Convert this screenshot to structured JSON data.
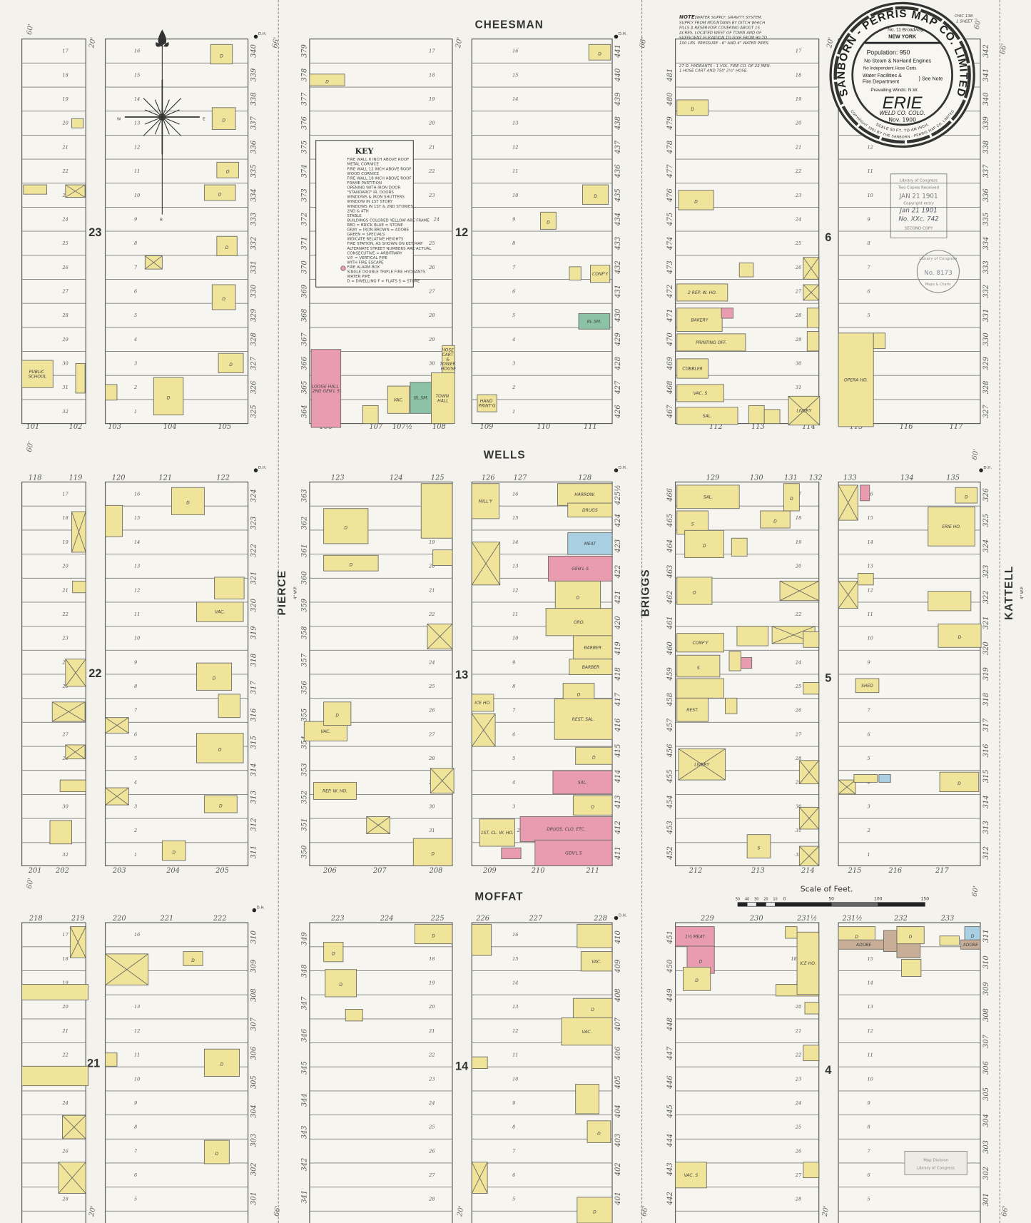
{
  "colors": {
    "paper": "#f3f2ec",
    "frame": "#f0e39a",
    "brick": "#e99bb0",
    "stone": "#a8cfe2",
    "adobe": "#c8ae96",
    "specials": "#8cc3a6",
    "line": "#5c5c5a"
  },
  "streets": {
    "cheesman": "CHEESMAN",
    "wells": "WELLS",
    "moffat": "MOFFAT",
    "pierce": "PIERCE",
    "briggs": "BRIGGS",
    "kattell": "KATTELL"
  },
  "street_notes": {
    "pierce": "4\" W.P.",
    "kattell": "4\" W.P.",
    "dh": "D.H."
  },
  "widths": {
    "sixty": "60'",
    "twenty": "20'",
    "sixtysix": "66'"
  },
  "blocks": [
    "23",
    "12",
    "6",
    "22",
    "13",
    "5",
    "21",
    "14",
    "4"
  ],
  "house_numbers": {
    "top_row_bottom": [
      "101",
      "102",
      "103",
      "104",
      "105",
      "106",
      "107",
      "107½",
      "108",
      "109",
      "110",
      "111",
      "112",
      "113",
      "114",
      "115",
      "116",
      "117"
    ],
    "mid_row_top": [
      "118",
      "119",
      "120",
      "121",
      "122",
      "123",
      "124",
      "125",
      "126",
      "127",
      "128",
      "129",
      "130",
      "131",
      "132",
      "133",
      "134",
      "135"
    ],
    "mid_row_bottom": [
      "201",
      "202",
      "203",
      "204",
      "205",
      "206",
      "207",
      "208",
      "209",
      "210",
      "211",
      "212",
      "213",
      "214",
      "215",
      "216",
      "217"
    ],
    "bottom_row_top": [
      "218",
      "219",
      "220",
      "221",
      "222",
      "223",
      "224",
      "225",
      "226",
      "227",
      "228",
      "229",
      "230",
      "231½",
      "231½",
      "232",
      "233"
    ]
  },
  "side_numbers": {
    "top_b": [
      "340",
      "339",
      "338",
      "337",
      "336",
      "335",
      "334",
      "333",
      "332",
      "331",
      "330",
      "329",
      "328",
      "327",
      "326",
      "325"
    ],
    "top_c": [
      "379",
      "378",
      "377",
      "376",
      "375",
      "374",
      "373",
      "372",
      "371",
      "370",
      "369",
      "368",
      "367",
      "366",
      "365",
      "364"
    ],
    "top_d": [
      "441",
      "440",
      "439",
      "438",
      "437",
      "436",
      "435",
      "434",
      "433",
      "432",
      "431",
      "430",
      "429",
      "428",
      "427",
      "426"
    ],
    "top_e": [
      "481",
      "480",
      "479",
      "478",
      "477",
      "476",
      "475",
      "474",
      "473",
      "472",
      "471",
      "470",
      "469",
      "468",
      "467"
    ],
    "top_f": [
      "342",
      "341",
      "340",
      "339",
      "338",
      "337",
      "336",
      "335",
      "334",
      "333",
      "332",
      "331",
      "330",
      "329",
      "328",
      "327"
    ],
    "mid_b": [
      "324",
      "323",
      "322",
      "321",
      "320",
      "319",
      "318",
      "317",
      "316",
      "315",
      "314",
      "313",
      "312",
      "311"
    ],
    "mid_c": [
      "363",
      "362",
      "361",
      "360",
      "359",
      "358",
      "357",
      "356",
      "355",
      "354",
      "353",
      "352",
      "351",
      "350"
    ],
    "mid_d": [
      "425½",
      "424",
      "423",
      "422",
      "421",
      "420",
      "419",
      "418",
      "417",
      "416",
      "415",
      "414",
      "413",
      "412",
      "411"
    ],
    "mid_e": [
      "466",
      "465",
      "464",
      "463",
      "462",
      "461",
      "460",
      "459",
      "458",
      "457",
      "456",
      "455",
      "454",
      "453",
      "452"
    ],
    "mid_f": [
      "326",
      "325",
      "324",
      "323",
      "322",
      "321",
      "320",
      "319",
      "318",
      "317",
      "316",
      "315",
      "314",
      "313",
      "312"
    ],
    "bot_b": [
      "310",
      "309",
      "308",
      "307",
      "306",
      "305",
      "304",
      "303",
      "302",
      "301"
    ],
    "bot_c": [
      "349",
      "348",
      "347",
      "346",
      "345",
      "344",
      "343",
      "342",
      "341"
    ],
    "bot_d": [
      "410",
      "409",
      "408",
      "407",
      "406",
      "405",
      "404",
      "403",
      "402",
      "401"
    ],
    "bot_e": [
      "451",
      "450",
      "449",
      "448",
      "447",
      "446",
      "445",
      "444",
      "443",
      "442"
    ],
    "bot_f": [
      "311",
      "310",
      "309",
      "308",
      "307",
      "306",
      "305",
      "304",
      "303",
      "302",
      "301"
    ]
  },
  "buildings": [
    [
      "D",
      "frame"
    ],
    [
      "D",
      "frame"
    ],
    [
      "D",
      "frame"
    ],
    [
      "D",
      "frame"
    ],
    [
      "D",
      "frame"
    ],
    [
      "D",
      "frame"
    ],
    [
      "D",
      "frame"
    ],
    [
      "D",
      "frame"
    ],
    [
      "",
      "frame"
    ],
    [
      "",
      "frame",
      1
    ],
    [
      "PUBLIC SCHOOL",
      "frame"
    ],
    [
      "",
      "frame"
    ],
    [
      "",
      "frame",
      1
    ],
    [
      "",
      "frame"
    ],
    [
      "",
      "frame"
    ],
    [
      "D",
      "frame"
    ],
    [
      "LODGE HALL 2ND GEN'L S",
      "brick"
    ],
    [
      "",
      "frame"
    ],
    [
      "VAC.",
      "frame"
    ],
    [
      "BL.SM.",
      "specials"
    ],
    [
      "TOWN HALL",
      "frame"
    ],
    [
      "HOSE CART & TOWER HOUSE",
      "frame"
    ],
    [
      "D",
      "frame"
    ],
    [
      "D",
      "frame"
    ],
    [
      "D",
      "frame"
    ],
    [
      "CONF'Y",
      "frame"
    ],
    [
      "",
      "frame"
    ],
    [
      "BL.SM.",
      "specials"
    ],
    [
      "HAND PRINT'G",
      "frame"
    ],
    [
      "D",
      "frame"
    ],
    [
      "D",
      "frame"
    ],
    [
      "2 REP. W. HO.",
      "frame"
    ],
    [
      "BAKERY",
      "frame"
    ],
    [
      "",
      "brick"
    ],
    [
      "PRINTING OFF.",
      "frame"
    ],
    [
      "COBBLER",
      "frame"
    ],
    [
      "VAC. S",
      "frame"
    ],
    [
      "SAL.",
      "frame"
    ],
    [
      "",
      "frame"
    ],
    [
      "",
      "frame"
    ],
    [
      "LIVERY",
      "frame",
      1
    ],
    [
      "",
      "frame"
    ],
    [
      "",
      "frame",
      1
    ],
    [
      "",
      "frame",
      1
    ],
    [
      "",
      "frame"
    ],
    [
      "",
      "frame"
    ],
    [
      "OPERA HO.",
      "frame"
    ],
    [
      "",
      "frame"
    ],
    [
      "",
      "frame",
      1
    ],
    [
      "",
      "frame"
    ],
    [
      "",
      "frame",
      1
    ],
    [
      "",
      "frame",
      1
    ],
    [
      "",
      "frame",
      1
    ],
    [
      "",
      "frame"
    ],
    [
      "",
      "frame"
    ],
    [
      "",
      "frame"
    ],
    [
      "D",
      "frame"
    ],
    [
      "",
      "frame"
    ],
    [
      "VAC.",
      "frame"
    ],
    [
      "D",
      "frame"
    ],
    [
      "",
      "frame"
    ],
    [
      "D",
      "frame"
    ],
    [
      "D",
      "frame"
    ],
    [
      "D",
      "frame"
    ],
    [
      "",
      "frame",
      1
    ],
    [
      "",
      "frame",
      1
    ],
    [
      "D",
      "frame"
    ],
    [
      "D",
      "frame"
    ],
    [
      "",
      "frame"
    ],
    [
      "",
      "frame"
    ],
    [
      "",
      "frame",
      1
    ],
    [
      "VAC.",
      "frame"
    ],
    [
      "D",
      "frame"
    ],
    [
      "REP. W. HO.",
      "frame"
    ],
    [
      "",
      "frame",
      1
    ],
    [
      "",
      "frame",
      1
    ],
    [
      "D",
      "frame"
    ],
    [
      "MILL'Y",
      "frame"
    ],
    [
      "",
      "frame",
      1
    ],
    [
      "HARROW.",
      "frame"
    ],
    [
      "DRUGS",
      "frame"
    ],
    [
      "MEAT",
      "stone"
    ],
    [
      "GEN'L S",
      "brick"
    ],
    [
      "D",
      "frame"
    ],
    [
      "GRO.",
      "frame"
    ],
    [
      "BARBER",
      "frame"
    ],
    [
      "BARBER",
      "frame"
    ],
    [
      "D",
      "frame"
    ],
    [
      "REST. SAL.",
      "frame"
    ],
    [
      "D",
      "frame"
    ],
    [
      "SAL.",
      "brick"
    ],
    [
      "D",
      "frame"
    ],
    [
      "DRUGS, CLO. ETC.",
      "brick"
    ],
    [
      "GEN'L S",
      "brick"
    ],
    [
      "1ST. CL. W. HO.",
      "frame"
    ],
    [
      "",
      "brick"
    ],
    [
      "ICE HO.",
      "frame"
    ],
    [
      "",
      "frame",
      1
    ],
    [
      "SAL.",
      "frame"
    ],
    [
      "S",
      "frame"
    ],
    [
      "D",
      "frame"
    ],
    [
      "D",
      "frame"
    ],
    [
      "",
      "frame"
    ],
    [
      "D",
      "frame"
    ],
    [
      "D",
      "frame"
    ],
    [
      "",
      "frame",
      1
    ],
    [
      "CONF'Y",
      "frame"
    ],
    [
      "",
      "frame"
    ],
    [
      "",
      "frame",
      1
    ],
    [
      "S",
      "frame"
    ],
    [
      "",
      "frame"
    ],
    [
      "REST.",
      "frame"
    ],
    [
      "",
      "frame"
    ],
    [
      "",
      "brick"
    ],
    [
      "",
      "frame"
    ],
    [
      "LIVERY",
      "frame",
      1
    ],
    [
      "S",
      "frame"
    ],
    [
      "",
      "frame",
      1
    ],
    [
      "",
      "frame",
      1
    ],
    [
      "",
      "frame",
      1
    ],
    [
      "",
      "frame"
    ],
    [
      "",
      "frame"
    ],
    [
      "",
      "frame",
      1
    ],
    [
      "",
      "brick"
    ],
    [
      "",
      "frame",
      1
    ],
    [
      "",
      "frame"
    ],
    [
      "ERIE HO.",
      "frame"
    ],
    [
      "",
      "frame"
    ],
    [
      "D",
      "frame"
    ],
    [
      "D",
      "frame"
    ],
    [
      "SHED",
      "frame"
    ],
    [
      "",
      "frame",
      1
    ],
    [
      "",
      "frame"
    ],
    [
      "",
      "stone"
    ],
    [
      "D",
      "frame"
    ],
    [
      "",
      "frame",
      1
    ],
    [
      "",
      "frame"
    ],
    [
      "",
      "frame"
    ],
    [
      "",
      "frame",
      1
    ],
    [
      "",
      "frame",
      1
    ],
    [
      "",
      "frame",
      1
    ],
    [
      "D",
      "frame"
    ],
    [
      "D",
      "frame"
    ],
    [
      "D",
      "frame"
    ],
    [
      "",
      "frame"
    ],
    [
      "D",
      "frame"
    ],
    [
      "D",
      "frame"
    ],
    [
      "D",
      "frame"
    ],
    [
      "",
      "frame"
    ],
    [
      "",
      "frame"
    ],
    [
      "VAC.",
      "frame"
    ],
    [
      "D",
      "frame"
    ],
    [
      "VAC.",
      "frame"
    ],
    [
      "",
      "frame"
    ],
    [
      "D",
      "frame"
    ],
    [
      "",
      "frame"
    ],
    [
      "",
      "frame",
      1
    ],
    [
      "D",
      "frame"
    ],
    [
      "",
      "frame"
    ],
    [
      "1½ MEAT",
      "brick"
    ],
    [
      "D",
      "brick"
    ],
    [
      "D",
      "frame"
    ],
    [
      "",
      "frame"
    ],
    [
      "",
      "frame"
    ],
    [
      "ICE HO.",
      "frame"
    ],
    [
      "",
      "frame"
    ],
    [
      "VAC. S",
      "frame"
    ],
    [
      "",
      "frame"
    ],
    [
      "",
      "frame"
    ],
    [
      "D",
      "frame"
    ],
    [
      "ADOBE",
      "adobe"
    ],
    [
      "",
      "adobe"
    ],
    [
      "ADOBE",
      "adobe"
    ],
    [
      "D",
      "frame"
    ],
    [
      "",
      "frame"
    ],
    [
      "",
      "frame"
    ],
    [
      "D",
      "stone"
    ],
    [
      "ADOBE",
      "adobe"
    ]
  ],
  "compass": {
    "w": "W",
    "e": "E",
    "s": "B"
  },
  "note": {
    "title": "NOTE:",
    "lines": [
      "WATER SUPPLY: GRAVITY SYSTEM.",
      "SUPPLY FROM MOUNTAINS BY DITCH WHICH",
      "FILLS A RESERVOIR COVERING ABOUT 15",
      "ACRES, LOCATED WEST OF TOWN AND OF",
      "SUFFICIENT ELEVATION TO GIVE FROM 90 TO",
      "100 LBS. PRESSURE - 6\" AND 4\" WATER PIPES.",
      "27 D. HYDRANTS - 1 VOL. FIRE CO. OF 22 MEN.",
      "1 HOSE CART AND 750' 2½\" HOSE."
    ]
  },
  "seal": {
    "ring": "SANBORN - PERRIS MAP CO. LIMITED",
    "address": "No. 11 Broadway",
    "city": "NEW YORK",
    "population": "Population: 950",
    "engines": "No Steam & NoHand Engines",
    "hose": "No Independent Hose Carts",
    "water1": "Water Facilities &",
    "water2": "Fire Department",
    "see_note": "} See Note",
    "winds": "Prevailing Winds: N.W.",
    "town": "ERIE",
    "county": "WELD CO.   COLO.",
    "date": "Nov. 1900",
    "scale": "SCALE 50 FT. TO AN INCH.",
    "copyright": "COPYRIGHT 1901 BY THE SANBORN - PERRIS MAP CO. LIMITED"
  },
  "sheet_ref": {
    "line1": "CHIC 138",
    "line2": "1 SHEET"
  },
  "key": {
    "title": "KEY",
    "lines": [
      "FIRE WALL 6 INCH ABOVE ROOF",
      "METAL CORNICE",
      "FIRE WALL 12 INCH ABOVE ROOF",
      "WOOD CORNICE",
      "FIRE WALL 18 INCH ABOVE ROOF",
      "FRAME PARTITION",
      "OPENING WITH IRON DOOR",
      "\"STANDARD\" IR. DOORS",
      "WINDOWS & IRON SHUTTERS",
      "WINDOW IN 1ST STORY",
      "WINDOWS IN 1ST & 2ND STORIES",
      "2ND & 4TH",
      "STABLE",
      "BUILDINGS COLORED YELLOW ARE FRAME",
      "RED = BRICK   BLUE = STONE",
      "GRAY = IRON   BROWN = ADOBE",
      "GREEN = SPECIALS",
      "INDICATE RELATIVE HEIGHTS",
      "FIRE STATION, AS SHOWN ON KEY MAP",
      "ALTERNATE STREET NUMBERS ARE ACTUAL",
      "CONSECUTIVE = ARBITRARY",
      "V.P. = VERTICAL PIPE",
      "WITH FIRE ESCAPE",
      "FIRE ALARM BOX",
      "SINGLE  DOUBLE  TRIPLE  FIRE HYDRANTS",
      "WATER PIPE",
      "D = DWELLING   F = FLATS   S = STORE"
    ]
  },
  "scale_bar": {
    "title": "Scale of Feet.",
    "ticks": [
      "50",
      "40",
      "30",
      "20",
      "10",
      "0",
      "50",
      "100",
      "150"
    ]
  },
  "copyright_stamp": {
    "lines": [
      "Library of Congress",
      "Two Copies Received",
      "JAN 21 1901",
      "Copyright entry",
      "Jan 21 1901",
      "No. XXc. 742",
      "SECOND COPY"
    ]
  },
  "loc_stamp": {
    "ring": "Library of Congress",
    "number": "No. 8173",
    "bottom": "Maps & Charts"
  },
  "map_division_stamp": {
    "line1": "Map Division",
    "line2": "Library of Congress"
  }
}
